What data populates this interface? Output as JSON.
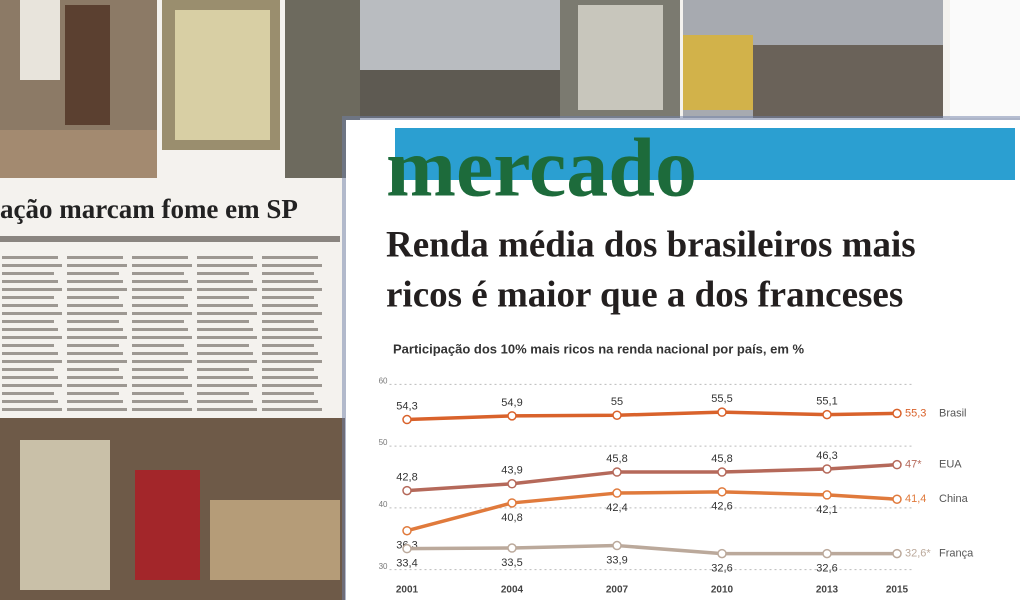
{
  "page": {
    "headline": "ação marcam fome em SP",
    "section": "mercado",
    "title_lines": [
      "Renda média dos brasileiros mais",
      "ricos é maior que a dos franceses"
    ]
  },
  "chart_data": {
    "type": "line",
    "subtitle": "Participação dos 10% mais ricos na renda nacional por país, em %",
    "x": [
      2001,
      2004,
      2007,
      2010,
      2013,
      2015
    ],
    "xlim": [
      2000.5,
      2015.5
    ],
    "xticks": [
      2001,
      2004,
      2007,
      2010,
      2013,
      2015
    ],
    "ylim": [
      28,
      62
    ],
    "yticks": [
      30,
      40,
      50,
      60
    ],
    "grid": true,
    "series": [
      {
        "name": "Brasil",
        "color": "#d9622b",
        "values": [
          54.3,
          54.9,
          55,
          55.5,
          55.1,
          55.3
        ],
        "value_labels": [
          "54,3",
          "54,9",
          "55",
          "55,5",
          "55,1",
          "55,3"
        ]
      },
      {
        "name": "EUA",
        "color": "#b5695a",
        "values": [
          42.8,
          43.9,
          45.8,
          45.8,
          46.3,
          47
        ],
        "value_labels": [
          "42,8",
          "43,9",
          "45,8",
          "45,8",
          "46,3",
          "47*"
        ]
      },
      {
        "name": "China",
        "color": "#e07a3c",
        "values": [
          36.3,
          40.8,
          42.4,
          42.6,
          42.1,
          41.4
        ],
        "value_labels": [
          "36,3",
          "40,8",
          "42,4",
          "42,6",
          "42,1",
          "41,4"
        ]
      },
      {
        "name": "França",
        "color": "#bba99b",
        "values": [
          33.4,
          33.5,
          33.9,
          32.6,
          32.6,
          32.6
        ],
        "value_labels": [
          "33,4",
          "33,5",
          "33,9",
          "32,6",
          "32,6",
          "32,6*"
        ]
      }
    ]
  }
}
